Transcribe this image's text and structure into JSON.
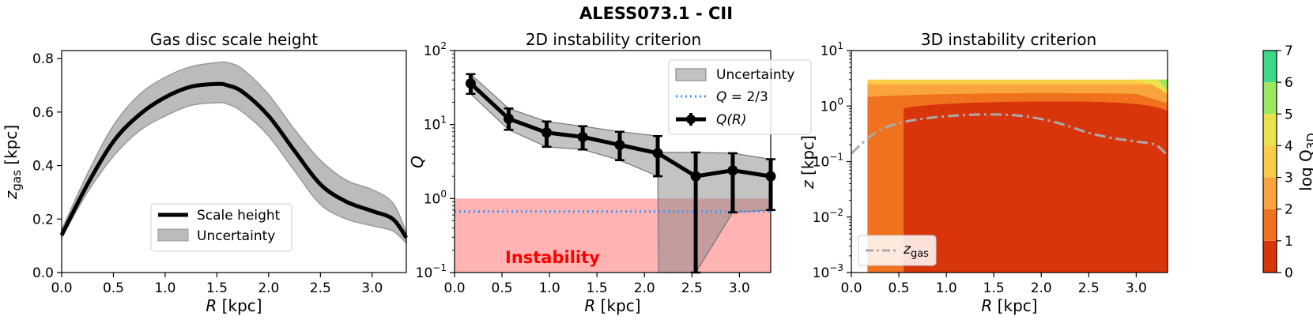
{
  "figure": {
    "suptitle": "ALESS073.1 - CII"
  },
  "chart_data": [
    {
      "type": "area",
      "title": "Gas disc scale height",
      "xlabel": "R [kpc]",
      "ylabel": "z_gas [kpc]",
      "xlabel_parts": {
        "var": "R",
        "unit": " [kpc]"
      },
      "ylabel_parts": {
        "var": "z",
        "sub": "gas",
        "unit": " [kpc]"
      },
      "xlim": [
        0,
        3.33
      ],
      "ylim": [
        0,
        0.83
      ],
      "xticks": [
        0.0,
        0.5,
        1.0,
        1.5,
        2.0,
        2.5,
        3.0
      ],
      "xtick_labels": [
        "0.0",
        "0.5",
        "1.0",
        "1.5",
        "2.0",
        "2.5",
        "3.0"
      ],
      "yticks": [
        0.0,
        0.2,
        0.4,
        0.6,
        0.8
      ],
      "ytick_labels": [
        "0.0",
        "0.2",
        "0.4",
        "0.6",
        "0.8"
      ],
      "series": [
        {
          "name": "Scale height",
          "x": [
            0,
            0.25,
            0.5,
            0.75,
            1.0,
            1.25,
            1.5,
            1.6,
            1.75,
            2.0,
            2.25,
            2.5,
            2.75,
            3.0,
            3.2,
            3.33
          ],
          "values": [
            0.14,
            0.33,
            0.49,
            0.59,
            0.655,
            0.695,
            0.705,
            0.7,
            0.675,
            0.585,
            0.455,
            0.33,
            0.265,
            0.23,
            0.2,
            0.13
          ]
        }
      ],
      "band": {
        "name": "Uncertainty",
        "x": [
          0,
          0.25,
          0.5,
          0.75,
          1.0,
          1.25,
          1.5,
          1.6,
          1.75,
          2.0,
          2.25,
          2.5,
          2.75,
          3.0,
          3.2,
          3.33
        ],
        "upper": [
          0.16,
          0.37,
          0.55,
          0.665,
          0.73,
          0.77,
          0.785,
          0.785,
          0.76,
          0.665,
          0.535,
          0.42,
          0.345,
          0.31,
          0.26,
          0.15
        ],
        "lower": [
          0.13,
          0.3,
          0.435,
          0.53,
          0.585,
          0.625,
          0.635,
          0.63,
          0.6,
          0.51,
          0.38,
          0.255,
          0.2,
          0.175,
          0.155,
          0.11
        ]
      },
      "legend": {
        "position": "bottom-center",
        "entries": [
          "Scale height",
          "Uncertainty"
        ]
      }
    },
    {
      "type": "line",
      "title": "2D instability criterion",
      "xlabel": "R [kpc]",
      "ylabel": "Q",
      "xlabel_parts": {
        "var": "R",
        "unit": " [kpc]"
      },
      "ylabel_parts": {
        "var": "Q"
      },
      "yscale": "log",
      "xlim": [
        0,
        3.33
      ],
      "ylim": [
        0.1,
        100
      ],
      "xticks": [
        0.0,
        0.5,
        1.0,
        1.5,
        2.0,
        2.5,
        3.0
      ],
      "xtick_labels": [
        "0.0",
        "0.5",
        "1.0",
        "1.5",
        "2.0",
        "2.5",
        "3.0"
      ],
      "yticks": [
        0.1,
        1,
        10,
        100
      ],
      "ytick_labels": [
        {
          "base": "10",
          "exp": "−1"
        },
        {
          "base": "10",
          "exp": "0"
        },
        {
          "base": "10",
          "exp": "1"
        },
        {
          "base": "10",
          "exp": "2"
        }
      ],
      "series": [
        {
          "name": "Q(R)",
          "x": [
            0.17,
            0.57,
            0.97,
            1.35,
            1.74,
            2.14,
            2.54,
            2.93,
            3.33
          ],
          "values": [
            36,
            12,
            7.8,
            6.8,
            5.3,
            4.1,
            2.0,
            2.4,
            2.0
          ],
          "err_low": [
            26,
            8.5,
            5.0,
            4.6,
            3.3,
            2.0,
            0.1,
            0.65,
            0.7
          ],
          "err_high": [
            48,
            16.5,
            11,
            9.5,
            8.0,
            7.0,
            4.2,
            4.1,
            3.4
          ]
        }
      ],
      "band": {
        "name": "Uncertainty",
        "x": [
          0.17,
          0.57,
          0.97,
          1.35,
          1.74,
          2.14,
          2.15,
          2.54,
          2.93,
          3.33
        ],
        "upper": [
          48,
          16.5,
          11,
          9.5,
          8.0,
          7.0,
          4.2,
          4.2,
          4.1,
          3.4
        ],
        "lower": [
          26,
          8.5,
          5.0,
          4.6,
          3.3,
          2.0,
          0.1,
          0.1,
          0.65,
          0.7
        ]
      },
      "reference_line": {
        "name": "Q = 2/3",
        "value": 0.667,
        "color": "#3399ff",
        "style": "dotted"
      },
      "instability_region": {
        "label": "Instability",
        "ymin": 0.1,
        "ymax": 1.0,
        "color": "#ff9999",
        "text_color": "#ff0000"
      },
      "legend": {
        "position": "top-right",
        "entries": [
          "Uncertainty",
          "Q = 2/3",
          "Q(R)"
        ]
      },
      "legend_parts": {
        "q_var": "Q",
        "q_eq": " = 2/3",
        "qr": "Q(R)"
      }
    },
    {
      "type": "heatmap",
      "title": "3D instability criterion",
      "xlabel": "R [kpc]",
      "ylabel": "z [kpc]",
      "xlabel_parts": {
        "var": "R",
        "unit": " [kpc]"
      },
      "ylabel_parts": {
        "var": "z",
        "unit": " [kpc]"
      },
      "yscale": "log",
      "xlim": [
        0,
        3.33
      ],
      "ylim": [
        0.001,
        10
      ],
      "xticks": [
        0.0,
        0.5,
        1.0,
        1.5,
        2.0,
        2.5,
        3.0
      ],
      "xtick_labels": [
        "0.0",
        "0.5",
        "1.0",
        "1.5",
        "2.0",
        "2.5",
        "3.0"
      ],
      "yticks": [
        0.001,
        0.01,
        0.1,
        1,
        10
      ],
      "ytick_labels": [
        {
          "base": "10",
          "exp": "−3"
        },
        {
          "base": "10",
          "exp": "−2"
        },
        {
          "base": "10",
          "exp": "−1"
        },
        {
          "base": "10",
          "exp": "0"
        },
        {
          "base": "10",
          "exp": "1"
        }
      ],
      "data_extent": {
        "r_min": 0.17,
        "r_max": 3.33,
        "z_max": 3.0
      },
      "contour_regions": [
        {
          "level": "0-1",
          "description": "bulk of disc, R 0.55-3.3 kpc, z below ~0.5-1 kpc"
        },
        {
          "level": "1-2",
          "description": "inner edge R<0.55 and upper layer"
        },
        {
          "level": "2-3",
          "description": "upper layer near z ~ 1-2 kpc"
        },
        {
          "level": "3-5",
          "description": "top layer z ~ 2-3 kpc"
        },
        {
          "level": "5-7",
          "description": "outer corner R ~ 3.3 kpc, z ~ 3 kpc"
        }
      ],
      "zgas_curve": {
        "name": "z_gas",
        "x": [
          0,
          0.25,
          0.5,
          0.75,
          1.0,
          1.25,
          1.5,
          1.75,
          2.0,
          2.25,
          2.5,
          2.75,
          3.0,
          3.2,
          3.33
        ],
        "values": [
          0.14,
          0.33,
          0.49,
          0.59,
          0.655,
          0.695,
          0.705,
          0.675,
          0.585,
          0.455,
          0.33,
          0.265,
          0.23,
          0.2,
          0.13
        ],
        "color": "#aaaaaa",
        "style": "dash-dot"
      },
      "legend": {
        "position": "bottom-left",
        "entries": [
          "z_gas"
        ],
        "entry_parts": {
          "var": "z",
          "sub": "gas"
        }
      },
      "colorbar": {
        "label": "log Q_3D",
        "label_parts": {
          "text": "log Q",
          "sub": "3D"
        },
        "range": [
          0,
          7
        ],
        "ticks": [
          0,
          1,
          2,
          3,
          4,
          5,
          6,
          7
        ],
        "tick_labels": [
          "0",
          "1",
          "2",
          "3",
          "4",
          "5",
          "6",
          "7"
        ],
        "levels": [
          0,
          1,
          2,
          3,
          4,
          5,
          6,
          7
        ],
        "colors": [
          "#d9350b",
          "#f0721f",
          "#f9a43c",
          "#fbcc4a",
          "#e8e34a",
          "#9be85e",
          "#3fd888"
        ]
      }
    }
  ]
}
